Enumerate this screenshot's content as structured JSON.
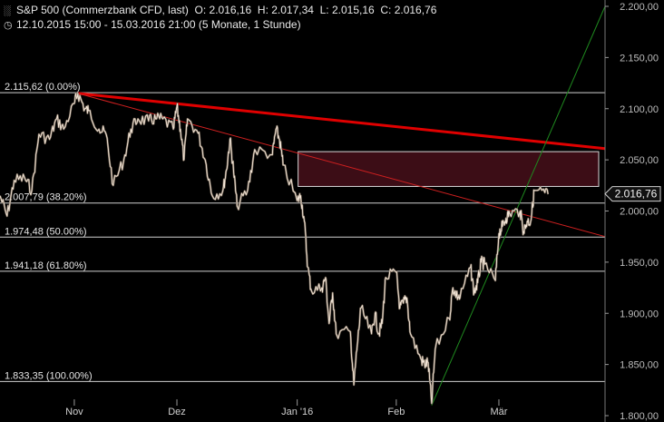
{
  "header": {
    "instrument": "S&P 500 (Commerzbank CFD, last)",
    "open": "O: 2.016,16",
    "high": "H: 2.017,34",
    "low": "L: 2.015,16",
    "close": "C: 2.016,76",
    "range": "12.10.2015 15:00 - 15.03.2016 21:00 (5 Monate, 1 Stunde)"
  },
  "price_badge": "2.016,76",
  "chart_data": {
    "type": "line",
    "title": "S&P 500 (Commerzbank CFD, last)",
    "y_ticks": [
      {
        "value": 1800,
        "label": "1.800,00"
      },
      {
        "value": 1850,
        "label": "1.850,00"
      },
      {
        "value": 1900,
        "label": "1.900,00"
      },
      {
        "value": 1950,
        "label": "1.950,00"
      },
      {
        "value": 2000,
        "label": "2.000,00"
      },
      {
        "value": 2050,
        "label": "2.050,00"
      },
      {
        "value": 2100,
        "label": "2.100,00"
      },
      {
        "value": 2150,
        "label": "2.150,00"
      },
      {
        "value": 2200,
        "label": "2.200,00"
      }
    ],
    "ylim": [
      1800,
      2200
    ],
    "x_ticks": [
      {
        "date": "2015-11-02",
        "label": "Nov"
      },
      {
        "date": "2015-12-01",
        "label": "Dez"
      },
      {
        "date": "2016-01-04",
        "label": "Jan '16"
      },
      {
        "date": "2016-02-01",
        "label": "Feb"
      },
      {
        "date": "2016-03-01",
        "label": "Mär"
      }
    ],
    "xlim": [
      "2015-10-12",
      "2016-03-31"
    ],
    "fib_levels": [
      {
        "value": 2115.62,
        "label": "2.115,62 (0.00%)"
      },
      {
        "value": 2007.79,
        "label": "2.007,79 (38.20%)"
      },
      {
        "value": 1974.48,
        "label": "1.974,48 (50.00%)"
      },
      {
        "value": 1941.18,
        "label": "1.941,18 (61.80%)"
      },
      {
        "value": 1833.35,
        "label": "1.833,35 (100.00%)"
      }
    ],
    "zone": {
      "from": "2016-01-04",
      "to": "2016-03-31",
      "low": 2024,
      "high": 2058
    },
    "trendlines": [
      {
        "color": "#e00000",
        "style": "thick",
        "points": [
          [
            "2015-11-03",
            2115
          ],
          [
            "2016-03-31",
            2061
          ]
        ]
      },
      {
        "color": "#d02020",
        "style": "thin",
        "points": [
          [
            "2015-11-03",
            2115
          ],
          [
            "2016-03-31",
            1975
          ]
        ]
      },
      {
        "color": "#1f8a1f",
        "style": "thin",
        "points": [
          [
            "2016-02-11",
            1810
          ],
          [
            "2016-03-31",
            2200
          ]
        ]
      }
    ],
    "series": [
      {
        "points": [
          [
            "2015-10-12",
            2015
          ],
          [
            "2015-10-14",
            1995
          ],
          [
            "2015-10-16",
            2030
          ],
          [
            "2015-10-19",
            2032
          ],
          [
            "2015-10-21",
            2020
          ],
          [
            "2015-10-23",
            2075
          ],
          [
            "2015-10-26",
            2070
          ],
          [
            "2015-10-28",
            2090
          ],
          [
            "2015-10-30",
            2080
          ],
          [
            "2015-11-02",
            2105
          ],
          [
            "2015-11-03",
            2115
          ],
          [
            "2015-11-05",
            2100
          ],
          [
            "2015-11-06",
            2098
          ],
          [
            "2015-11-09",
            2080
          ],
          [
            "2015-11-11",
            2075
          ],
          [
            "2015-11-13",
            2025
          ],
          [
            "2015-11-16",
            2050
          ],
          [
            "2015-11-18",
            2080
          ],
          [
            "2015-11-20",
            2090
          ],
          [
            "2015-11-23",
            2088
          ],
          [
            "2015-11-25",
            2090
          ],
          [
            "2015-11-27",
            2090
          ],
          [
            "2015-11-30",
            2080
          ],
          [
            "2015-12-01",
            2102
          ],
          [
            "2015-12-02",
            2080
          ],
          [
            "2015-12-03",
            2050
          ],
          [
            "2015-12-04",
            2090
          ],
          [
            "2015-12-07",
            2076
          ],
          [
            "2015-12-09",
            2050
          ],
          [
            "2015-12-11",
            2015
          ],
          [
            "2015-12-14",
            2020
          ],
          [
            "2015-12-15",
            2040
          ],
          [
            "2015-12-16",
            2070
          ],
          [
            "2015-12-17",
            2040
          ],
          [
            "2015-12-18",
            2005
          ],
          [
            "2015-12-21",
            2020
          ],
          [
            "2015-12-23",
            2060
          ],
          [
            "2015-12-28",
            2055
          ],
          [
            "2015-12-29",
            2080
          ],
          [
            "2015-12-30",
            2070
          ],
          [
            "2015-12-31",
            2045
          ],
          [
            "2016-01-04",
            2010
          ],
          [
            "2016-01-05",
            2015
          ],
          [
            "2016-01-06",
            1990
          ],
          [
            "2016-01-07",
            1945
          ],
          [
            "2016-01-08",
            1922
          ],
          [
            "2016-01-11",
            1925
          ],
          [
            "2016-01-12",
            1935
          ],
          [
            "2016-01-13",
            1890
          ],
          [
            "2016-01-14",
            1920
          ],
          [
            "2016-01-15",
            1880
          ],
          [
            "2016-01-19",
            1882
          ],
          [
            "2016-01-20",
            1830
          ],
          [
            "2016-01-21",
            1870
          ],
          [
            "2016-01-22",
            1905
          ],
          [
            "2016-01-25",
            1880
          ],
          [
            "2016-01-26",
            1900
          ],
          [
            "2016-01-27",
            1880
          ],
          [
            "2016-01-28",
            1890
          ],
          [
            "2016-01-29",
            1935
          ],
          [
            "2016-02-01",
            1940
          ],
          [
            "2016-02-02",
            1905
          ],
          [
            "2016-02-03",
            1910
          ],
          [
            "2016-02-04",
            1915
          ],
          [
            "2016-02-05",
            1880
          ],
          [
            "2016-02-08",
            1855
          ],
          [
            "2016-02-09",
            1850
          ],
          [
            "2016-02-10",
            1852
          ],
          [
            "2016-02-11",
            1812
          ],
          [
            "2016-02-12",
            1865
          ],
          [
            "2016-02-16",
            1895
          ],
          [
            "2016-02-17",
            1925
          ],
          [
            "2016-02-18",
            1918
          ],
          [
            "2016-02-19",
            1915
          ],
          [
            "2016-02-22",
            1945
          ],
          [
            "2016-02-23",
            1920
          ],
          [
            "2016-02-24",
            1930
          ],
          [
            "2016-02-25",
            1950
          ],
          [
            "2016-02-26",
            1948
          ],
          [
            "2016-02-29",
            1932
          ],
          [
            "2016-03-01",
            1978
          ],
          [
            "2016-03-02",
            1985
          ],
          [
            "2016-03-03",
            1993
          ],
          [
            "2016-03-04",
            1998
          ],
          [
            "2016-03-07",
            2000
          ],
          [
            "2016-03-08",
            1980
          ],
          [
            "2016-03-09",
            1990
          ],
          [
            "2016-03-10",
            1990
          ],
          [
            "2016-03-11",
            2020
          ],
          [
            "2016-03-14",
            2018
          ],
          [
            "2016-03-15",
            2016.76
          ]
        ]
      }
    ],
    "last_price": 2016.76
  }
}
